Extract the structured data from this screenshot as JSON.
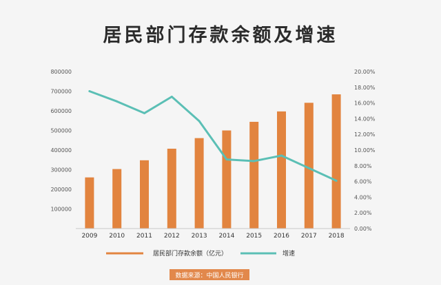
{
  "chart_data": {
    "type": "bar+line",
    "title": "居民部门存款余额及增速",
    "categories": [
      "2009",
      "2010",
      "2011",
      "2012",
      "2013",
      "2014",
      "2015",
      "2016",
      "2017",
      "2018"
    ],
    "series": [
      {
        "name": "居民部门存款余额（亿元）",
        "kind": "bar",
        "axis": "left",
        "color": "#e2843f",
        "values": [
          260700,
          303300,
          348000,
          407000,
          461000,
          500000,
          544000,
          597000,
          641000,
          684000
        ]
      },
      {
        "name": "增速",
        "kind": "line",
        "axis": "right",
        "color": "#5bbfb5",
        "values": [
          17.5,
          16.2,
          14.7,
          16.8,
          13.7,
          8.8,
          8.6,
          9.3,
          7.7,
          6.1
        ]
      }
    ],
    "left_axis": {
      "ylim": [
        0,
        800000
      ],
      "ticks": [
        "100000",
        "200000",
        "300000",
        "400000",
        "500000",
        "600000",
        "700000",
        "800000"
      ]
    },
    "right_axis": {
      "ylim": [
        0,
        20
      ],
      "ticks": [
        "0.00%",
        "2.00%",
        "4.00%",
        "6.00%",
        "8.00%",
        "10.00%",
        "12.00%",
        "14.00%",
        "16.00%",
        "18.00%",
        "20.00%"
      ]
    },
    "legend": {
      "position": "bottom",
      "items": [
        "居民部门存款余额（亿元）",
        "增速"
      ]
    },
    "source": "数据来源：中国人民银行",
    "grid": false
  }
}
